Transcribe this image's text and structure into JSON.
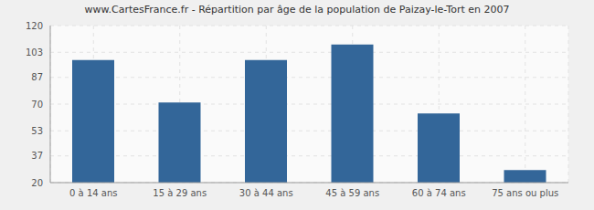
{
  "chart_data": {
    "type": "bar",
    "title": "www.CartesFrance.fr - Répartition par âge de la population de Paizay-le-Tort en 2007",
    "categories": [
      "0 à 14 ans",
      "15 à 29 ans",
      "30 à 44 ans",
      "45 à 59 ans",
      "60 à 74 ans",
      "75 ans ou plus"
    ],
    "values": [
      98,
      71,
      98,
      108,
      64,
      28
    ],
    "color": "#336699",
    "ylim": [
      20,
      120
    ],
    "yticks": [
      20,
      37,
      53,
      70,
      87,
      103,
      120
    ],
    "grid": true
  }
}
